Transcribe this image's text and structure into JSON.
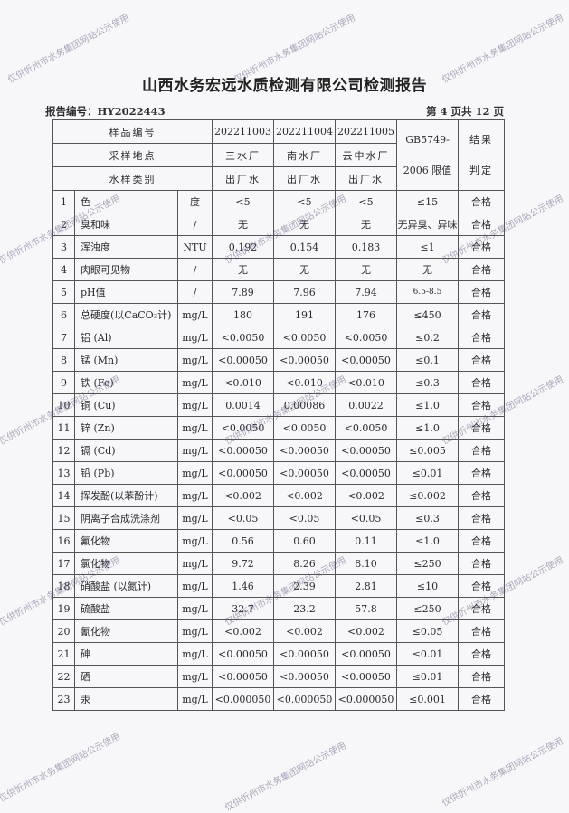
{
  "title": "山西水务宏远水质检测有限公司检测报告",
  "report_number": "报告编号：HY2022443",
  "page_info": "第 4 页共 12 页",
  "watermark": "仅供忻州市水务集团网站公示使用",
  "header": {
    "sample_id_label": "样品编号",
    "location_label": "采样地点",
    "type_label": "水样类别",
    "samples": [
      {
        "id": "202211003",
        "location": "三水厂",
        "type": "出厂水"
      },
      {
        "id": "202211004",
        "location": "南水厂",
        "type": "出厂水"
      },
      {
        "id": "202211005",
        "location": "云中水厂",
        "type": "出厂水"
      }
    ],
    "limit_label_1": "GB5749-",
    "limit_label_2": "2006 限值",
    "result_label_1": "结果",
    "result_label_2": "判定"
  },
  "rows": [
    {
      "no": "1",
      "item": "色",
      "unit": "度",
      "v": [
        "<5",
        "<5",
        "<5"
      ],
      "limit": "≤15",
      "result": "合格"
    },
    {
      "no": "2",
      "item": "臭和味",
      "unit": "/",
      "v": [
        "无",
        "无",
        "无"
      ],
      "limit": "无异臭、异味",
      "result": "合格"
    },
    {
      "no": "3",
      "item": "浑浊度",
      "unit": "NTU",
      "v": [
        "0.192",
        "0.154",
        "0.183"
      ],
      "limit": "≤1",
      "result": "合格"
    },
    {
      "no": "4",
      "item": "肉眼可见物",
      "unit": "/",
      "v": [
        "无",
        "无",
        "无"
      ],
      "limit": "无",
      "result": "合格"
    },
    {
      "no": "5",
      "item": "pH值",
      "unit": "/",
      "v": [
        "7.89",
        "7.96",
        "7.94"
      ],
      "limit": "6.5-8.5",
      "result": "合格"
    },
    {
      "no": "6",
      "item": "总硬度(以CaCO₃计)",
      "unit": "mg/L",
      "v": [
        "180",
        "191",
        "176"
      ],
      "limit": "≤450",
      "result": "合格"
    },
    {
      "no": "7",
      "item": "铝 (Al)",
      "unit": "mg/L",
      "v": [
        "<0.0050",
        "<0.0050",
        "<0.0050"
      ],
      "limit": "≤0.2",
      "result": "合格"
    },
    {
      "no": "8",
      "item": "锰 (Mn)",
      "unit": "mg/L",
      "v": [
        "<0.00050",
        "<0.00050",
        "<0.00050"
      ],
      "limit": "≤0.1",
      "result": "合格"
    },
    {
      "no": "9",
      "item": "铁 (Fe)",
      "unit": "mg/L",
      "v": [
        "<0.010",
        "<0.010",
        "<0.010"
      ],
      "limit": "≤0.3",
      "result": "合格"
    },
    {
      "no": "10",
      "item": "铜 (Cu)",
      "unit": "mg/L",
      "v": [
        "0.0014",
        "0.00086",
        "0.0022"
      ],
      "limit": "≤1.0",
      "result": "合格"
    },
    {
      "no": "11",
      "item": "锌 (Zn)",
      "unit": "mg/L",
      "v": [
        "<0.0050",
        "<0.0050",
        "<0.0050"
      ],
      "limit": "≤1.0",
      "result": "合格"
    },
    {
      "no": "12",
      "item": "镉 (Cd)",
      "unit": "mg/L",
      "v": [
        "<0.00050",
        "<0.00050",
        "<0.00050"
      ],
      "limit": "≤0.005",
      "result": "合格"
    },
    {
      "no": "13",
      "item": "铅 (Pb)",
      "unit": "mg/L",
      "v": [
        "<0.00050",
        "<0.00050",
        "<0.00050"
      ],
      "limit": "≤0.01",
      "result": "合格"
    },
    {
      "no": "14",
      "item": "挥发酚(以苯酚计)",
      "unit": "mg/L",
      "v": [
        "<0.002",
        "<0.002",
        "<0.002"
      ],
      "limit": "≤0.002",
      "result": "合格"
    },
    {
      "no": "15",
      "item": "阴离子合成洗涤剂",
      "unit": "mg/L",
      "v": [
        "<0.05",
        "<0.05",
        "<0.05"
      ],
      "limit": "≤0.3",
      "result": "合格"
    },
    {
      "no": "16",
      "item": "氟化物",
      "unit": "mg/L",
      "v": [
        "0.56",
        "0.60",
        "0.11"
      ],
      "limit": "≤1.0",
      "result": "合格"
    },
    {
      "no": "17",
      "item": "氯化物",
      "unit": "mg/L",
      "v": [
        "9.72",
        "8.26",
        "8.10"
      ],
      "limit": "≤250",
      "result": "合格"
    },
    {
      "no": "18",
      "item": "硝酸盐 (以氮计)",
      "unit": "mg/L",
      "v": [
        "1.46",
        "2.39",
        "2.81"
      ],
      "limit": "≤10",
      "result": "合格"
    },
    {
      "no": "19",
      "item": "硫酸盐",
      "unit": "mg/L",
      "v": [
        "32.7",
        "23.2",
        "57.8"
      ],
      "limit": "≤250",
      "result": "合格"
    },
    {
      "no": "20",
      "item": "氰化物",
      "unit": "mg/L",
      "v": [
        "<0.002",
        "<0.002",
        "<0.002"
      ],
      "limit": "≤0.05",
      "result": "合格"
    },
    {
      "no": "21",
      "item": "砷",
      "unit": "mg/L",
      "v": [
        "<0.00050",
        "<0.00050",
        "<0.00050"
      ],
      "limit": "≤0.01",
      "result": "合格"
    },
    {
      "no": "22",
      "item": "硒",
      "unit": "mg/L",
      "v": [
        "<0.00050",
        "<0.00050",
        "<0.00050"
      ],
      "limit": "≤0.01",
      "result": "合格"
    },
    {
      "no": "23",
      "item": "汞",
      "unit": "mg/L",
      "v": [
        "<0.000050",
        "<0.000050",
        "<0.000050"
      ],
      "limit": "≤0.001",
      "result": "合格"
    }
  ]
}
